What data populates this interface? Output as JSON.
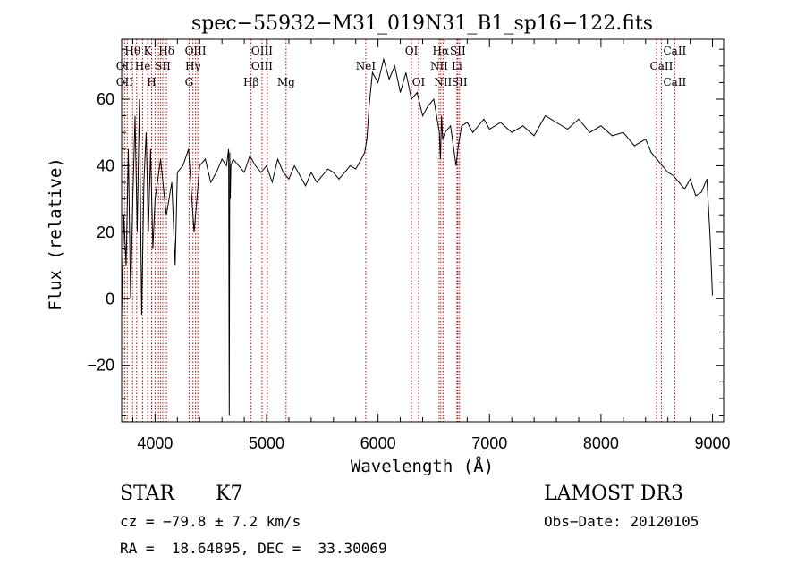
{
  "chart_data": {
    "type": "line",
    "title": "spec−55932−M31_019N31_B1_sp16−122.fits",
    "xlabel": "Wavelength (Å)",
    "ylabel": "Flux (relative)",
    "xlim": [
      3700,
      9100
    ],
    "ylim": [
      -37,
      78
    ],
    "x_ticks": [
      4000,
      5000,
      6000,
      7000,
      8000,
      9000
    ],
    "y_ticks": [
      -20,
      0,
      20,
      40,
      60
    ],
    "y_tick_labels": [
      "−20",
      "0",
      "20",
      "40",
      "60"
    ],
    "line_color": "#000000",
    "marker_color": "#cc0000",
    "series": [
      {
        "name": "flux",
        "x": [
          3700,
          3720,
          3740,
          3760,
          3780,
          3800,
          3820,
          3840,
          3860,
          3880,
          3900,
          3920,
          3940,
          3960,
          3980,
          4000,
          4050,
          4100,
          4150,
          4180,
          4200,
          4250,
          4300,
          4350,
          4400,
          4450,
          4500,
          4550,
          4600,
          4640,
          4660,
          4665,
          4670,
          4675,
          4680,
          4700,
          4750,
          4800,
          4850,
          4900,
          4950,
          5000,
          5050,
          5100,
          5150,
          5200,
          5250,
          5300,
          5350,
          5400,
          5450,
          5500,
          5550,
          5600,
          5650,
          5700,
          5750,
          5800,
          5850,
          5880,
          5900,
          5920,
          5950,
          6000,
          6050,
          6100,
          6150,
          6200,
          6250,
          6300,
          6350,
          6400,
          6450,
          6500,
          6550,
          6560,
          6570,
          6580,
          6600,
          6650,
          6700,
          6720,
          6750,
          6800,
          6850,
          6900,
          6950,
          7000,
          7100,
          7200,
          7300,
          7400,
          7500,
          7600,
          7700,
          7800,
          7900,
          8000,
          8100,
          8200,
          8300,
          8400,
          8450,
          8500,
          8550,
          8600,
          8650,
          8700,
          8750,
          8800,
          8850,
          8900,
          8950,
          8980,
          9000
        ],
        "y": [
          -5,
          25,
          10,
          45,
          0,
          30,
          55,
          20,
          60,
          -5,
          35,
          50,
          20,
          45,
          15,
          30,
          42,
          25,
          35,
          10,
          38,
          40,
          45,
          20,
          40,
          42,
          35,
          38,
          42,
          40,
          45,
          -35,
          44,
          30,
          40,
          42,
          40,
          38,
          43,
          40,
          38,
          40,
          35,
          42,
          38,
          36,
          40,
          37,
          34,
          38,
          35,
          37,
          39,
          38,
          36,
          38,
          40,
          39,
          42,
          44,
          48,
          58,
          68,
          65,
          72,
          66,
          70,
          62,
          68,
          60,
          62,
          55,
          58,
          60,
          50,
          42,
          55,
          48,
          50,
          52,
          40,
          46,
          52,
          53,
          50,
          52,
          54,
          51,
          53,
          50,
          52,
          49,
          55,
          53,
          51,
          54,
          50,
          52,
          49,
          50,
          46,
          48,
          44,
          42,
          40,
          38,
          37,
          35,
          33,
          36,
          31,
          32,
          36,
          18,
          1
        ]
      }
    ],
    "lines": [
      {
        "name": "Hθ",
        "x": 3798,
        "row": 0
      },
      {
        "name": "K",
        "x": 3934,
        "row": 0
      },
      {
        "name": "Hδ",
        "x": 4102,
        "row": 0
      },
      {
        "name": "OIII",
        "x": 4363,
        "row": 0
      },
      {
        "name": "OIII",
        "x": 4959,
        "row": 0
      },
      {
        "name": "OI",
        "x": 6300,
        "row": 0
      },
      {
        "name": "Hα",
        "x": 6563,
        "row": 0
      },
      {
        "name": "SII",
        "x": 6716,
        "row": 0
      },
      {
        "name": "CaII",
        "x": 8662,
        "row": 0
      },
      {
        "name": "OII",
        "x": 3727,
        "row": 1
      },
      {
        "name": "He",
        "x": 3889,
        "row": 1
      },
      {
        "name": "SII",
        "x": 4069,
        "row": 1
      },
      {
        "name": "Hγ",
        "x": 4340,
        "row": 1
      },
      {
        "name": "OIII",
        "x": 4959,
        "row": 1
      },
      {
        "name": "NeI",
        "x": 5890,
        "row": 1
      },
      {
        "name": "NII",
        "x": 6548,
        "row": 1
      },
      {
        "name": "Li",
        "x": 6708,
        "row": 1
      },
      {
        "name": "CaII",
        "x": 8542,
        "row": 1
      },
      {
        "name": "OII",
        "x": 3727,
        "row": 2
      },
      {
        "name": "H",
        "x": 3969,
        "row": 2
      },
      {
        "name": "G",
        "x": 4305,
        "row": 2
      },
      {
        "name": "Hβ",
        "x": 4861,
        "row": 2
      },
      {
        "name": "Mg",
        "x": 5175,
        "row": 2
      },
      {
        "name": "OI",
        "x": 6364,
        "row": 2
      },
      {
        "name": "NII",
        "x": 6583,
        "row": 2
      },
      {
        "name": "SII",
        "x": 6731,
        "row": 2
      },
      {
        "name": "CaII",
        "x": 8662,
        "row": 2
      }
    ],
    "extra_marker_x": [
      3750,
      3835,
      3970,
      4000,
      4030,
      4050,
      4340,
      4383,
      5007,
      6583,
      6731,
      8498
    ]
  },
  "info": {
    "obj_class": "STAR",
    "subclass": "K7",
    "survey": "LAMOST DR3",
    "cz": "cz = −79.8 ± 7.2 km/s",
    "obs_date": "Obs−Date: 20120105",
    "radec": "RA =  18.64895, DEC =  33.30069"
  }
}
